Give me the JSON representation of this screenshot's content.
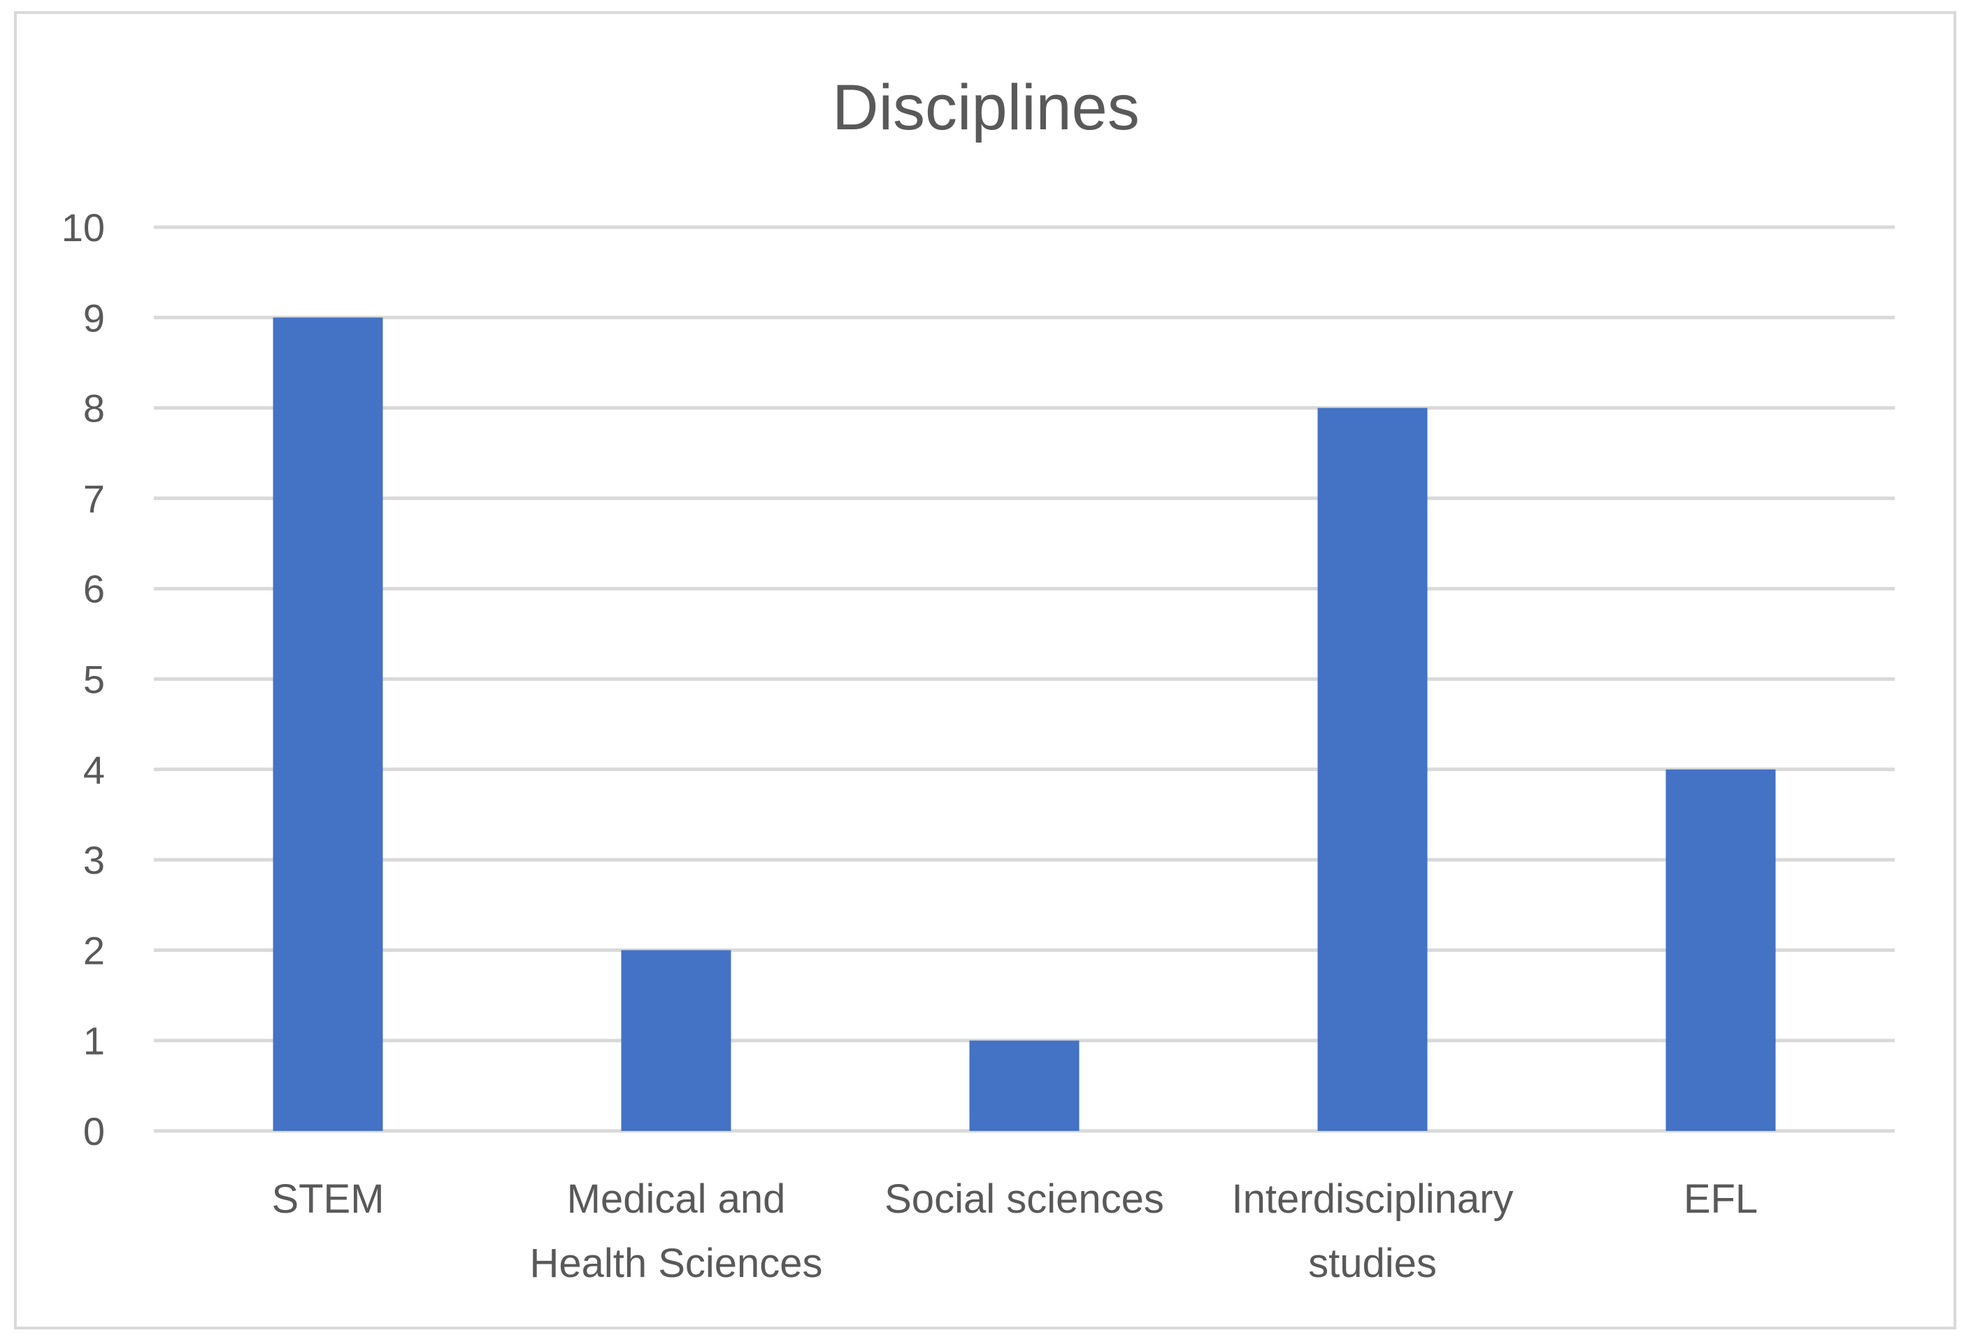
{
  "chart_data": {
    "type": "bar",
    "title": "Disciplines",
    "categories": [
      "STEM",
      "Medical and Health Sciences",
      "Social sciences",
      "Interdisciplinary studies",
      "EFL"
    ],
    "category_label_lines": [
      [
        "STEM"
      ],
      [
        "Medical and",
        "Health Sciences"
      ],
      [
        "Social sciences"
      ],
      [
        "Interdisciplinary",
        "studies"
      ],
      [
        "EFL"
      ]
    ],
    "values": [
      9,
      2,
      1,
      8,
      4
    ],
    "xlabel": "",
    "ylabel": "",
    "ylim": [
      0,
      10
    ],
    "yticks": [
      "0",
      "1",
      "2",
      "3",
      "4",
      "5",
      "6",
      "7",
      "8",
      "9",
      "10"
    ],
    "grid": true,
    "legend": "none",
    "colors": {
      "bar": "#4472C4",
      "grid": "#d9d9d9",
      "text": "#595959",
      "border": "#d9d9d9"
    }
  }
}
